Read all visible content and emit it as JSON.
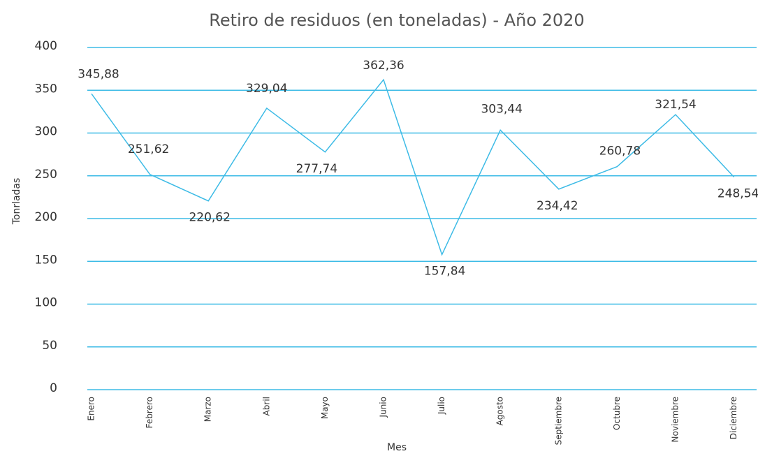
{
  "chart_data": {
    "type": "line",
    "title": "Retiro de residuos (en toneladas) - Año 2020",
    "x_label": "Mes",
    "y_label": "Tonrladas",
    "categories": [
      "Enero",
      "Febrero",
      "Marzo",
      "Abril",
      "Mayo",
      "Junio",
      "Julio",
      "Agosto",
      "Septiembre",
      "Octubre",
      "Noviembre",
      "Diciembre"
    ],
    "series": [
      {
        "name": "Retiro de residuos",
        "color": "#3dbbe6",
        "values": [
          345.88,
          251.62,
          220.62,
          329.04,
          277.74,
          362.36,
          157.84,
          303.44,
          234.42,
          260.78,
          321.54,
          248.54
        ],
        "value_labels": [
          "345,88",
          "251,62",
          "220,62",
          "329,04",
          "277,74",
          "362,36",
          "157,84",
          "303,44",
          "234,42",
          "260,78",
          "321,54",
          "248,54"
        ]
      }
    ],
    "ylim": [
      0,
      400
    ],
    "yticks": [
      0,
      50,
      100,
      150,
      200,
      250,
      300,
      350,
      400
    ],
    "grid": true,
    "grid_color": "#3dbbe6"
  }
}
